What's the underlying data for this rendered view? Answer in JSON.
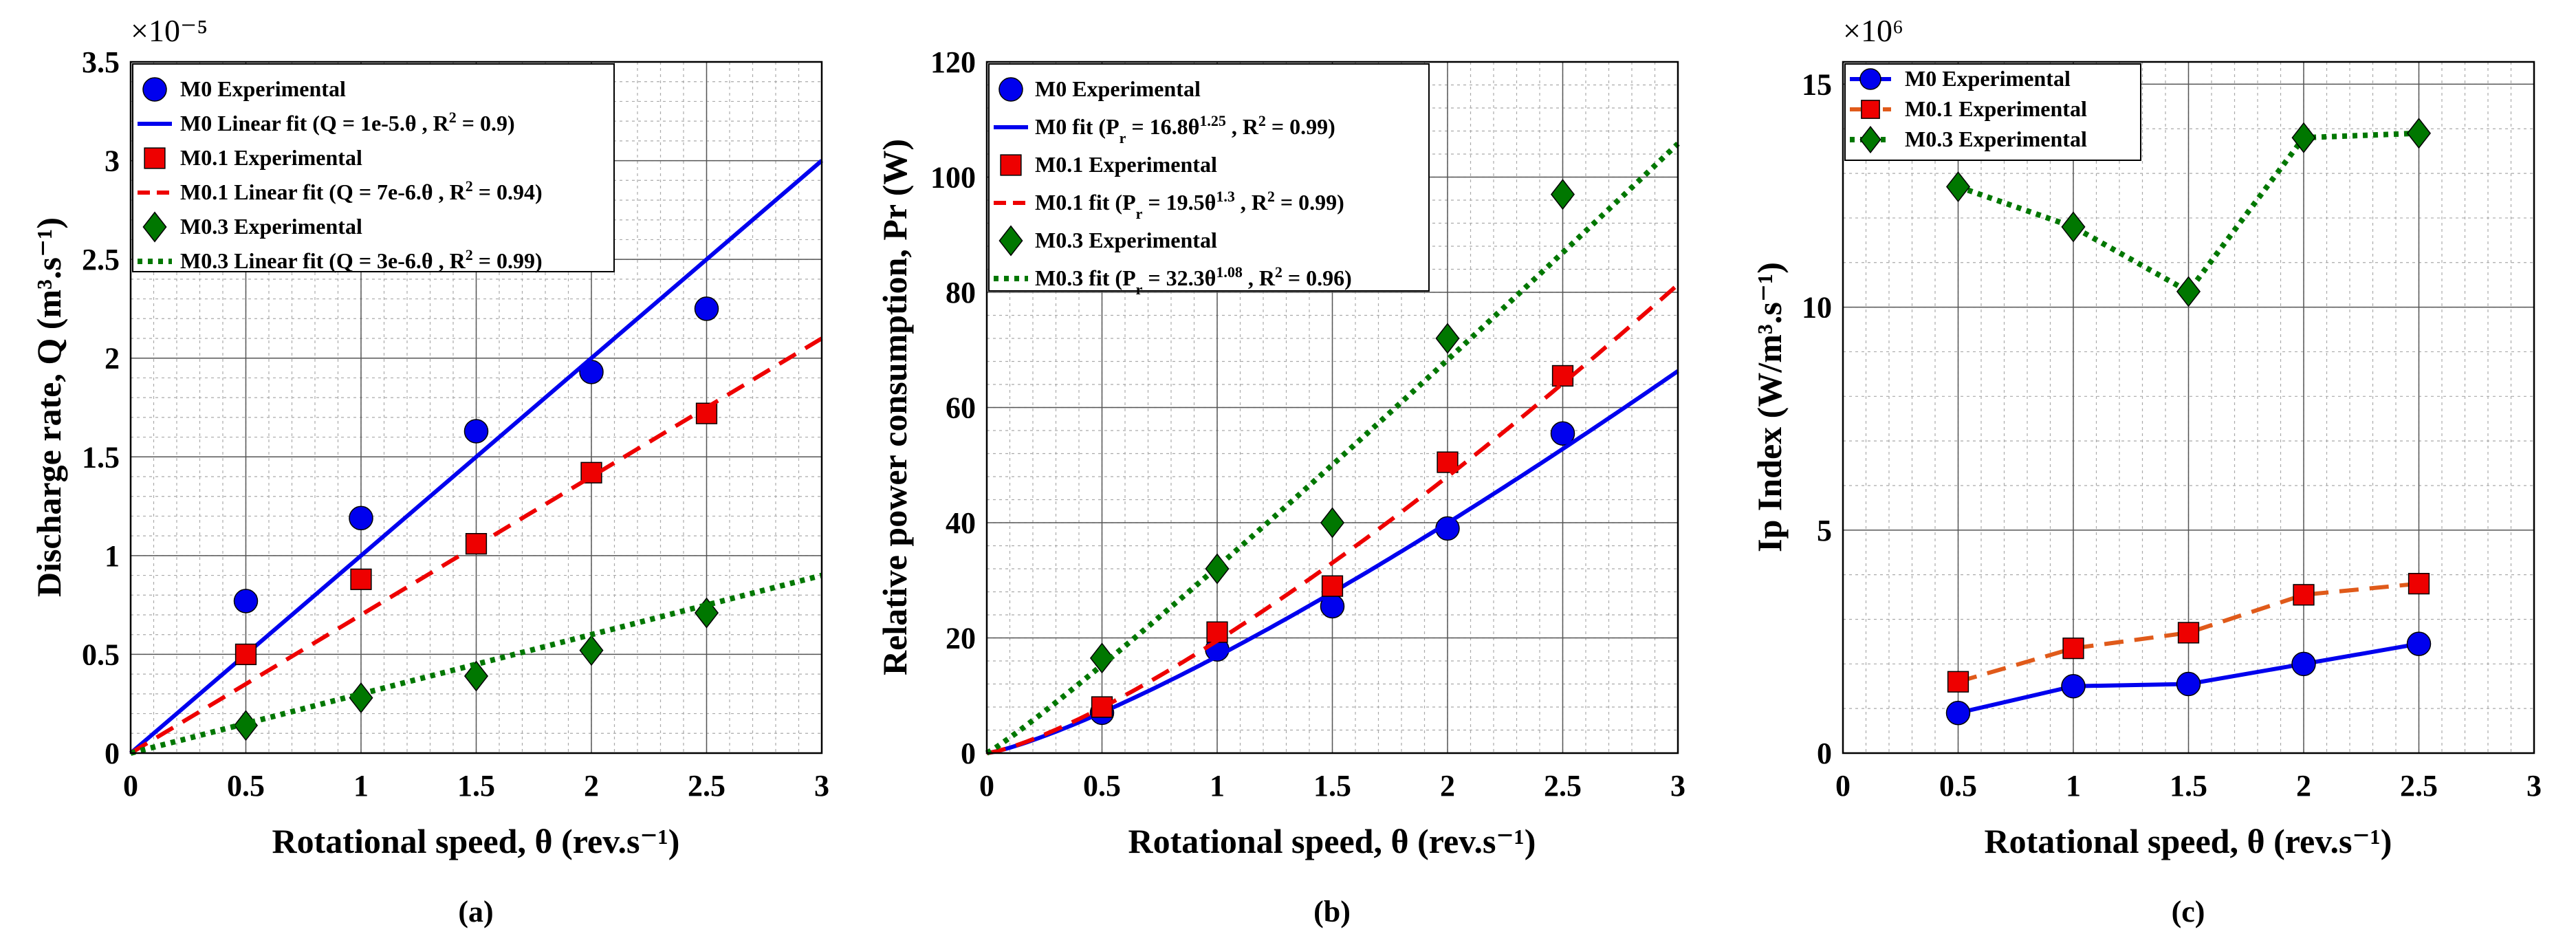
{
  "chart_data": [
    {
      "type": "scatter",
      "panel_label": "(a)",
      "xlabel": "Rotational speed, θ (rev.s⁻¹)",
      "ylabel": "Discharge rate, Q (m³.s⁻¹)",
      "y_exponent_label": "×10⁻⁵",
      "xlim": [
        0,
        3
      ],
      "ylim": [
        0,
        3.5
      ],
      "xticks": [
        0,
        0.5,
        1,
        1.5,
        2,
        2.5,
        3
      ],
      "yticks": [
        0,
        0.5,
        1,
        1.5,
        2,
        2.5,
        3,
        3.5
      ],
      "ytick_labels": [
        "0",
        "0.5",
        "1",
        "1.5",
        "2",
        "2.5",
        "3",
        "3.5"
      ],
      "grid": true,
      "legend_position": "top-left",
      "series": [
        {
          "name": "M0 Experimental",
          "kind": "marker",
          "marker": "circle",
          "color": "#0000ee",
          "x": [
            0.5,
            1,
            1.5,
            2,
            2.5
          ],
          "y": [
            0.77,
            1.19,
            1.63,
            1.93,
            2.25
          ]
        },
        {
          "name": "M0 Linear fit (Q = 1e-5.θ , R² = 0.9)",
          "kind": "line",
          "dash": "solid",
          "color": "#0000ee",
          "x": [
            0,
            3
          ],
          "y": [
            0,
            3.0
          ]
        },
        {
          "name": "M0.1 Experimental",
          "kind": "marker",
          "marker": "square",
          "color": "#ee0000",
          "x": [
            0.5,
            1,
            1.5,
            2,
            2.5
          ],
          "y": [
            0.5,
            0.88,
            1.06,
            1.42,
            1.72
          ]
        },
        {
          "name": "M0.1 Linear fit (Q = 7e-6.θ , R² = 0.94)",
          "kind": "line",
          "dash": "dashed",
          "color": "#ee0000",
          "x": [
            0,
            3
          ],
          "y": [
            0,
            2.1
          ]
        },
        {
          "name": "M0.3 Experimental",
          "kind": "marker",
          "marker": "diamond",
          "color": "#007700",
          "x": [
            0.5,
            1,
            1.5,
            2,
            2.5
          ],
          "y": [
            0.14,
            0.28,
            0.39,
            0.52,
            0.71
          ]
        },
        {
          "name": "M0.3 Linear fit (Q = 3e-6.θ , R² = 0.99)",
          "kind": "line",
          "dash": "dotted",
          "color": "#007700",
          "x": [
            0,
            3
          ],
          "y": [
            0,
            0.9
          ]
        }
      ]
    },
    {
      "type": "scatter",
      "panel_label": "(b)",
      "xlabel": "Rotational speed, θ (rev.s⁻¹)",
      "ylabel": "Relative power consumption, Pr (W)",
      "xlim": [
        0,
        3
      ],
      "ylim": [
        0,
        120
      ],
      "xticks": [
        0,
        0.5,
        1,
        1.5,
        2,
        2.5,
        3
      ],
      "yticks": [
        0,
        20,
        40,
        60,
        80,
        100,
        120
      ],
      "ytick_labels": [
        "0",
        "20",
        "40",
        "60",
        "80",
        "100",
        "120"
      ],
      "grid": true,
      "legend_position": "top-left",
      "series": [
        {
          "name": "M0 Experimental",
          "kind": "marker",
          "marker": "circle",
          "color": "#0000ee",
          "x": [
            0.5,
            1,
            1.5,
            2,
            2.5
          ],
          "y": [
            7,
            18,
            25.5,
            39,
            55.5
          ]
        },
        {
          "name": "M0 fit (Pr = 16.8θ^1.25 , R² = 0.99)",
          "kind": "curve",
          "dash": "solid",
          "color": "#0000ee",
          "coef": 16.8,
          "exp": 1.25
        },
        {
          "name": "M0.1 Experimental",
          "kind": "marker",
          "marker": "square",
          "color": "#ee0000",
          "x": [
            0.5,
            1,
            1.5,
            2,
            2.5
          ],
          "y": [
            8,
            21,
            29,
            50.5,
            65.5
          ]
        },
        {
          "name": "M0.1 fit (Pr = 19.5θ^1.3 , R² = 0.99)",
          "kind": "curve",
          "dash": "dashed",
          "color": "#ee0000",
          "coef": 19.5,
          "exp": 1.3
        },
        {
          "name": "M0.3 Experimental",
          "kind": "marker",
          "marker": "diamond",
          "color": "#007700",
          "x": [
            0.5,
            1,
            1.5,
            2,
            2.5
          ],
          "y": [
            16.5,
            32,
            40,
            72,
            97
          ]
        },
        {
          "name": "M0.3 fit (Pr = 32.3θ^1.08 , R² = 0.96)",
          "kind": "curve",
          "dash": "dotted",
          "color": "#007700",
          "coef": 32.3,
          "exp": 1.08
        }
      ]
    },
    {
      "type": "line",
      "panel_label": "(c)",
      "xlabel": "Rotational speed, θ (rev.s⁻¹)",
      "ylabel": "Ip Index (W/m³.s⁻¹)",
      "y_exponent_label": "×10⁶",
      "xlim": [
        0,
        3
      ],
      "ylim": [
        0,
        15.5
      ],
      "xticks": [
        0,
        0.5,
        1,
        1.5,
        2,
        2.5,
        3
      ],
      "yticks": [
        0,
        5,
        10,
        15
      ],
      "ytick_labels": [
        "0",
        "5",
        "10",
        "15"
      ],
      "grid": true,
      "legend_position": "top-left",
      "series": [
        {
          "name": "M0   Experimental",
          "kind": "line+marker",
          "marker": "circle",
          "dash": "solid",
          "color": "#0000ee",
          "x": [
            0.5,
            1,
            1.5,
            2,
            2.5
          ],
          "y": [
            0.9,
            1.5,
            1.55,
            2.0,
            2.45
          ]
        },
        {
          "name": "M0.1 Experimental",
          "kind": "line+marker",
          "marker": "square",
          "dash": "dashed",
          "color": "#ee0000",
          "line_color": "#e05a1a",
          "x": [
            0.5,
            1,
            1.5,
            2,
            2.5
          ],
          "y": [
            1.6,
            2.35,
            2.7,
            3.55,
            3.8
          ]
        },
        {
          "name": "M0.3 Experimental",
          "kind": "line+marker",
          "marker": "diamond",
          "dash": "dotted",
          "color": "#007700",
          "x": [
            0.5,
            1,
            1.5,
            2,
            2.5
          ],
          "y": [
            12.7,
            11.8,
            10.35,
            13.8,
            13.9
          ]
        }
      ]
    }
  ]
}
